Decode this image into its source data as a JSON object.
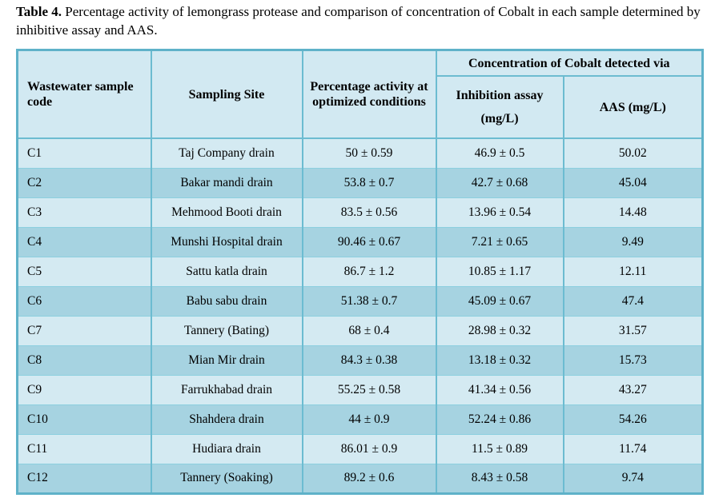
{
  "title": {
    "label": "Table 4.",
    "text": " Percentage activity of lemongrass protease and comparison of concentration of Cobalt in each sample determined by inhibitive assay and AAS."
  },
  "table": {
    "headers": {
      "sample_code": "Wastewater sample code",
      "sampling_site": "Sampling Site",
      "percentage_activity": "Percentage activity at optimized conditions",
      "cobalt_group": "Concentration of Cobalt detected via",
      "inhibition_assay": "Inhibition assay (mg/L)",
      "aas": "AAS (mg/L)"
    },
    "rows": [
      {
        "code": "C1",
        "site": "Taj Company drain",
        "activity": "50 ± 0.59",
        "inhibition": "46.9 ± 0.5",
        "aas": "50.02"
      },
      {
        "code": "C2",
        "site": "Bakar mandi drain",
        "activity": "53.8 ± 0.7",
        "inhibition": "42.7 ± 0.68",
        "aas": "45.04"
      },
      {
        "code": "C3",
        "site": "Mehmood Booti drain",
        "activity": "83.5 ± 0.56",
        "inhibition": "13.96 ± 0.54",
        "aas": "14.48"
      },
      {
        "code": "C4",
        "site": "Munshi Hospital drain",
        "activity": "90.46 ± 0.67",
        "inhibition": "7.21 ± 0.65",
        "aas": "9.49"
      },
      {
        "code": "C5",
        "site": "Sattu katla drain",
        "activity": "86.7 ± 1.2",
        "inhibition": "10.85 ± 1.17",
        "aas": "12.11"
      },
      {
        "code": "C6",
        "site": "Babu sabu drain",
        "activity": "51.38 ± 0.7",
        "inhibition": "45.09 ± 0.67",
        "aas": "47.4"
      },
      {
        "code": "C7",
        "site": "Tannery (Bating)",
        "activity": "68 ± 0.4",
        "inhibition": "28.98 ± 0.32",
        "aas": "31.57"
      },
      {
        "code": "C8",
        "site": "Mian Mir drain",
        "activity": "84.3 ± 0.38",
        "inhibition": "13.18 ± 0.32",
        "aas": "15.73"
      },
      {
        "code": "C9",
        "site": "Farrukhabad drain",
        "activity": "55.25 ± 0.58",
        "inhibition": "41.34 ± 0.56",
        "aas": "43.27"
      },
      {
        "code": "C10",
        "site": "Shahdera drain",
        "activity": "44 ± 0.9",
        "inhibition": "52.24 ± 0.86",
        "aas": "54.26"
      },
      {
        "code": "C11",
        "site": "Hudiara drain",
        "activity": "86.01 ± 0.9",
        "inhibition": "11.5 ± 0.89",
        "aas": "11.74"
      },
      {
        "code": "C12",
        "site": "Tannery (Soaking)",
        "activity": "89.2 ± 0.6",
        "inhibition": "8.43 ± 0.58",
        "aas": "9.74"
      }
    ]
  },
  "colors": {
    "header_bg": "#d2e9f2",
    "row_light": "#d4eaf2",
    "row_dark": "#a6d3e1",
    "border": "#6cbcd1",
    "border_outer": "#5fb2c9",
    "text": "#000000"
  }
}
